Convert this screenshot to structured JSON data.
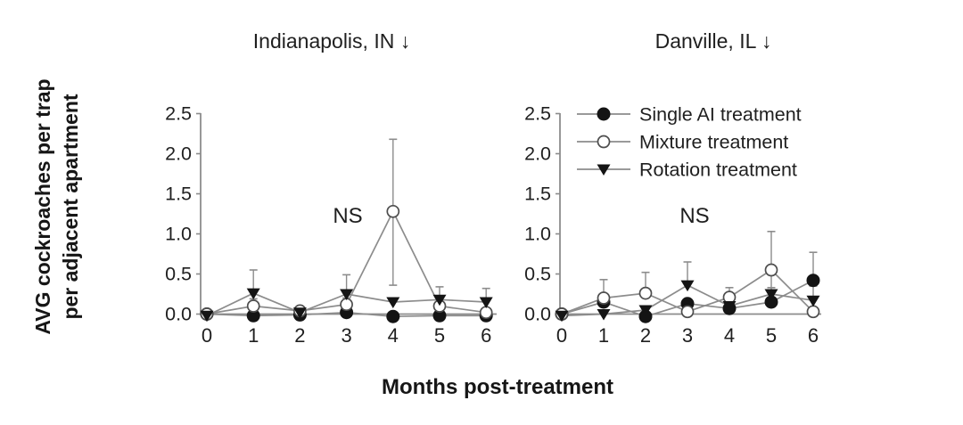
{
  "figure": {
    "y_axis_label_line1": "AVG cockroaches per trap",
    "y_axis_label_line2": "per adjacent apartment",
    "x_axis_label": "Months post-treatment"
  },
  "colors": {
    "line": "#8c8c8c",
    "error_bar": "#8c8c8c",
    "axis": "#8c8c8c",
    "marker_fill": "#141414",
    "open_marker_fill": "#ffffff",
    "open_marker_stroke": "#4d4d4d",
    "text": "#1f1f1f"
  },
  "chart_data": [
    {
      "type": "line",
      "title": "Indianapolis, IN ↓",
      "annotation": "NS",
      "x": [
        0,
        1,
        2,
        3,
        4,
        5,
        6
      ],
      "xtick_labels": [
        "0",
        "1",
        "2",
        "3",
        "4",
        "5",
        "6"
      ],
      "ylim": [
        0,
        2.5
      ],
      "yticks": [
        0.0,
        0.5,
        1.0,
        1.5,
        2.0,
        2.5
      ],
      "ytick_labels": [
        "0.0",
        "0.5",
        "1.0",
        "1.5",
        "2.0",
        "2.5"
      ],
      "legend_visible": false,
      "series": [
        {
          "name": "Single AI treatment",
          "marker": "filled-circle",
          "values": [
            0.0,
            -0.02,
            -0.01,
            0.02,
            -0.03,
            -0.02,
            -0.02
          ],
          "err_up": [
            0,
            0,
            0,
            0,
            0,
            0,
            0
          ],
          "err_down": [
            0,
            0,
            0,
            0,
            0,
            0,
            0
          ]
        },
        {
          "name": "Mixture treatment",
          "marker": "open-circle",
          "values": [
            0.0,
            0.1,
            0.04,
            0.12,
            1.28,
            0.1,
            0.02
          ],
          "err_up": [
            0,
            0.09,
            0.04,
            0.08,
            0.9,
            0.08,
            0.03
          ],
          "err_down": [
            0,
            0,
            0,
            0,
            0.92,
            0,
            0
          ]
        },
        {
          "name": "Rotation treatment",
          "marker": "filled-triangle-down",
          "values": [
            -0.02,
            0.26,
            0.02,
            0.25,
            0.15,
            0.18,
            0.15
          ],
          "err_up": [
            0,
            0.29,
            0,
            0.24,
            0,
            0.16,
            0.17
          ],
          "err_down": [
            0,
            0,
            0,
            0,
            0,
            0,
            0
          ]
        }
      ]
    },
    {
      "type": "line",
      "title": "Danville, IL ↓",
      "annotation": "NS",
      "x": [
        0,
        1,
        2,
        3,
        4,
        5,
        6
      ],
      "xtick_labels": [
        "0",
        "1",
        "2",
        "3",
        "4",
        "5",
        "6"
      ],
      "ylim": [
        0,
        2.5
      ],
      "yticks": [
        0.0,
        0.5,
        1.0,
        1.5,
        2.0,
        2.5
      ],
      "ytick_labels": [
        "0.0",
        "0.5",
        "1.0",
        "1.5",
        "2.0",
        "2.5"
      ],
      "legend_visible": true,
      "series": [
        {
          "name": "Single AI treatment",
          "marker": "filled-circle",
          "values": [
            0.0,
            0.15,
            -0.03,
            0.13,
            0.07,
            0.15,
            0.42
          ],
          "err_up": [
            0,
            0,
            0,
            0,
            0,
            0,
            0.35
          ],
          "err_down": [
            0,
            0,
            0,
            0,
            0,
            0,
            0
          ]
        },
        {
          "name": "Mixture treatment",
          "marker": "open-circle",
          "values": [
            0.0,
            0.2,
            0.26,
            0.03,
            0.21,
            0.55,
            0.03
          ],
          "err_up": [
            0,
            0.23,
            0.26,
            0,
            0.12,
            0.48,
            0
          ],
          "err_down": [
            0,
            0,
            0,
            0,
            0,
            0.22,
            0
          ]
        },
        {
          "name": "Rotation treatment",
          "marker": "filled-triangle-down",
          "values": [
            -0.02,
            0.0,
            0.05,
            0.36,
            0.1,
            0.25,
            0.17
          ],
          "err_up": [
            0,
            0,
            0.04,
            0.29,
            0,
            0.08,
            0.18
          ],
          "err_down": [
            0,
            0,
            0,
            0,
            0,
            0,
            0
          ]
        }
      ]
    }
  ]
}
